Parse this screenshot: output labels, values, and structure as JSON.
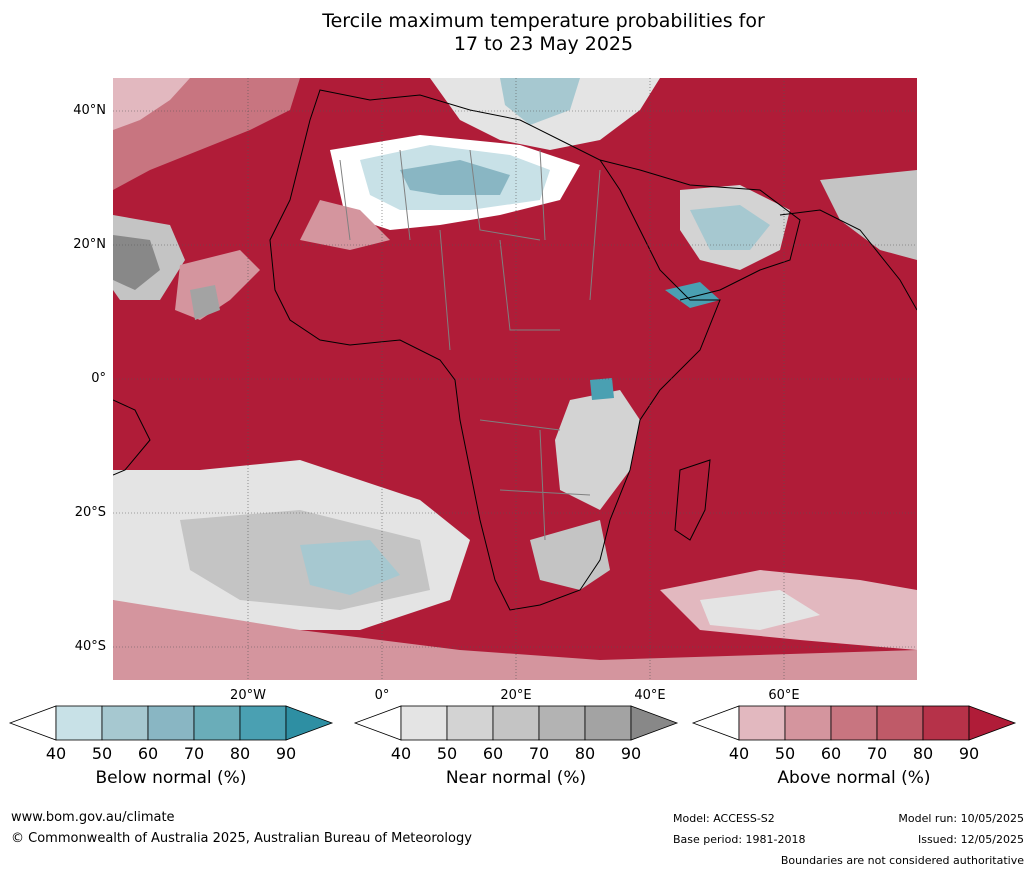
{
  "title_line1": "Tercile maximum temperature probabilities for",
  "title_line2": "17 to 23 May 2025",
  "map": {
    "lat_labels": [
      "40°N",
      "20°N",
      "0°",
      "20°S",
      "40°S"
    ],
    "lon_labels": [
      "20°W",
      "0°",
      "20°E",
      "40°E",
      "60°E"
    ]
  },
  "legends": [
    {
      "label": "Below normal (%)",
      "ticks": [
        "40",
        "50",
        "60",
        "70",
        "80",
        "90"
      ],
      "colors": [
        "#ffffff",
        "#c8e1e7",
        "#a6c8d0",
        "#89b6c3",
        "#6aadb9",
        "#4aa0b2",
        "#2e8fa3"
      ]
    },
    {
      "label": "Near normal (%)",
      "ticks": [
        "40",
        "50",
        "60",
        "70",
        "80",
        "90"
      ],
      "colors": [
        "#ffffff",
        "#e4e4e4",
        "#d3d3d3",
        "#c4c4c4",
        "#b3b3b3",
        "#a3a3a3",
        "#888888"
      ]
    },
    {
      "label": "Above normal (%)",
      "ticks": [
        "40",
        "50",
        "60",
        "70",
        "80",
        "90"
      ],
      "colors": [
        "#ffffff",
        "#e2b8bf",
        "#d4959e",
        "#c87580",
        "#bf5a68",
        "#b63249",
        "#b01c38"
      ]
    }
  ],
  "footer": {
    "url": "www.bom.gov.au/climate",
    "copyright": "© Commonwealth of Australia 2025, Australian Bureau of Meteorology",
    "model": "Model: ACCESS-S2",
    "base_period": "Base period: 1981-2018",
    "model_run": "Model run: 10/05/2025",
    "issued": "Issued: 12/05/2025",
    "boundaries": "Boundaries are not considered authoritative"
  }
}
